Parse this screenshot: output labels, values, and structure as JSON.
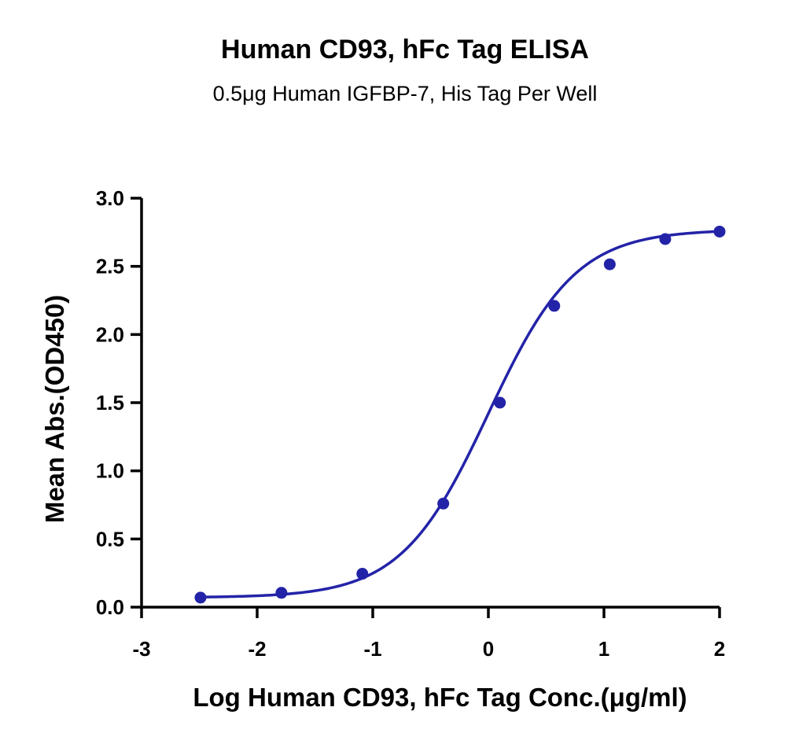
{
  "chart_data": {
    "type": "scatter",
    "title": "Human CD93, hFc Tag ELISA",
    "subtitle": "0.5μg Human IGFBP-7, His Tag Per Well",
    "xlabel": "Log Human CD93, hFc Tag Conc.(μg/ml)",
    "ylabel": "Mean Abs.(OD450)",
    "xlim": [
      -3,
      2
    ],
    "ylim": [
      0,
      3
    ],
    "xticks": [
      "-3",
      "-2",
      "-1",
      "0",
      "1",
      "2"
    ],
    "yticks": [
      "0.0",
      "0.5",
      "1.0",
      "1.5",
      "2.0",
      "2.5",
      "3.0"
    ],
    "grid": false,
    "colors": {
      "series": "#2323A8",
      "axis": "#000000"
    },
    "series": [
      {
        "x": [
          -2.49,
          -1.79,
          -1.09,
          -0.39,
          0.1,
          0.57,
          1.05,
          1.53,
          2.0
        ],
        "y": [
          0.07,
          0.105,
          0.245,
          0.76,
          1.5,
          2.21,
          2.515,
          2.7,
          2.755
        ],
        "fit": "sigmoidal 4PL"
      }
    ]
  }
}
